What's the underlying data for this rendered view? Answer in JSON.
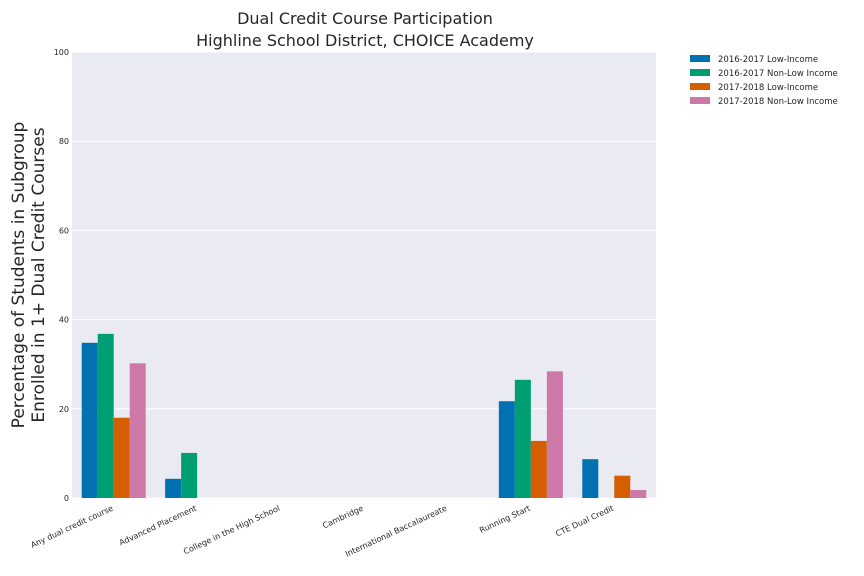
{
  "chart_data": {
    "type": "bar",
    "title": [
      "Dual Credit Course Participation",
      "Highline School District, CHOICE Academy"
    ],
    "xlabel": "",
    "ylabel": [
      "Percentage of Students in Subgroup",
      "Enrolled in 1+ Dual Credit Courses"
    ],
    "ylim": [
      0,
      100
    ],
    "yticks": [
      0,
      20,
      40,
      60,
      80,
      100
    ],
    "grid": true,
    "legend_position": "outside-top-right",
    "categories": [
      "Any dual credit course",
      "Advanced Placement",
      "College in the High School",
      "Cambridge",
      "International Baccalaureate",
      "Running Start",
      "CTE Dual Credit"
    ],
    "series": [
      {
        "name": "2016-2017 Low-Income",
        "color": "#0072b2",
        "values": [
          34.8,
          4.3,
          0,
          0,
          0,
          21.7,
          8.7
        ]
      },
      {
        "name": "2016-2017 Non-Low Income",
        "color": "#009e73",
        "values": [
          36.8,
          10.1,
          0,
          0,
          0,
          26.5,
          0
        ]
      },
      {
        "name": "2017-2018 Low-Income",
        "color": "#d55e00",
        "values": [
          18.0,
          0,
          0,
          0,
          0,
          12.8,
          5.0
        ]
      },
      {
        "name": "2017-2018 Non-Low Income",
        "color": "#cc79a7",
        "values": [
          30.2,
          0,
          0,
          0,
          0,
          28.4,
          1.8
        ]
      }
    ]
  }
}
